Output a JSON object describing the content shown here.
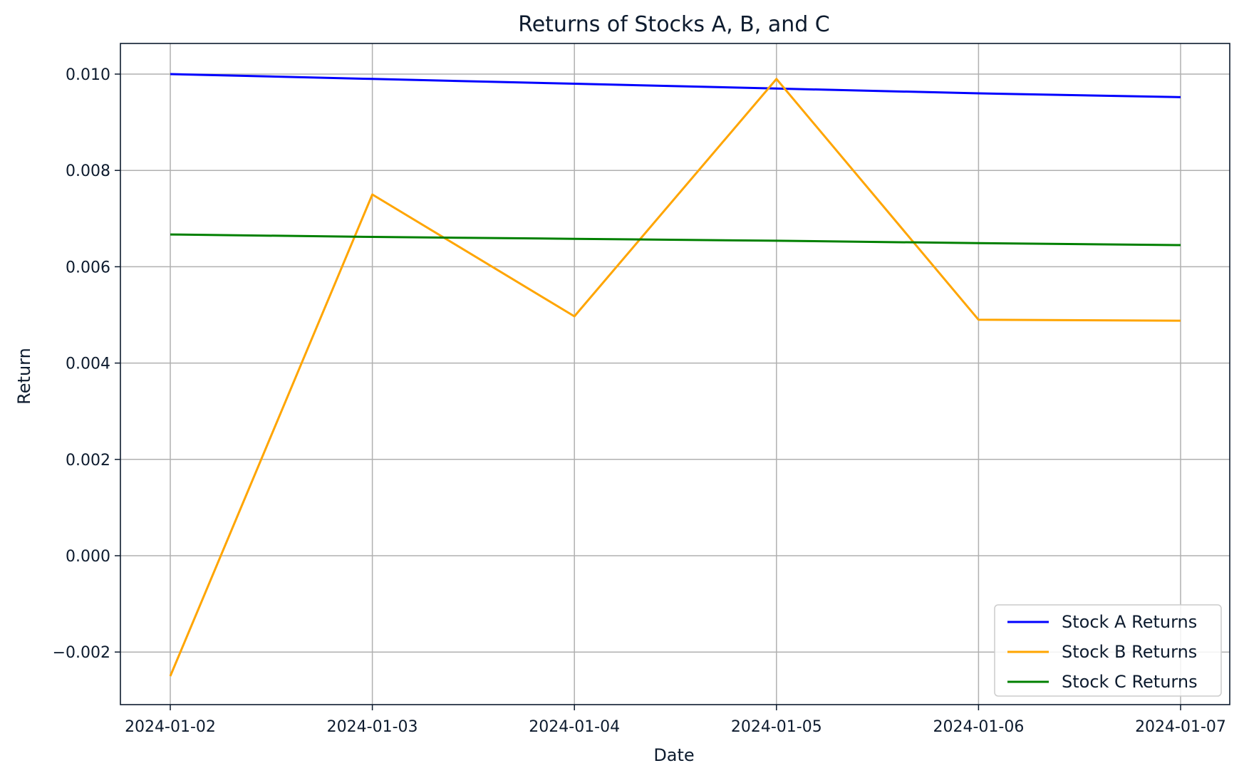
{
  "chart_data": {
    "type": "line",
    "title": "Returns of Stocks A, B, and C",
    "xlabel": "Date",
    "ylabel": "Return",
    "x": [
      "2024-01-02",
      "2024-01-03",
      "2024-01-04",
      "2024-01-05",
      "2024-01-06",
      "2024-01-07"
    ],
    "ylim": [
      -0.0031,
      0.0106
    ],
    "yticks": [
      -0.002,
      0.0,
      0.002,
      0.004,
      0.006,
      0.008,
      0.01
    ],
    "ytick_labels": [
      "−0.002",
      "0.000",
      "0.002",
      "0.004",
      "0.006",
      "0.008",
      "0.010"
    ],
    "grid": true,
    "legend_position": "lower-right",
    "series": [
      {
        "name": "Stock A Returns",
        "color": "#0000ff",
        "values": [
          0.01,
          0.0099,
          0.0098,
          0.0097,
          0.0096,
          0.00952
        ]
      },
      {
        "name": "Stock B Returns",
        "color": "#ffa500",
        "values": [
          -0.0025,
          0.0075,
          0.00497,
          0.0099,
          0.0049,
          0.00488
        ]
      },
      {
        "name": "Stock C Returns",
        "color": "#008000",
        "values": [
          0.00667,
          0.00662,
          0.00658,
          0.00654,
          0.00649,
          0.00645
        ]
      }
    ]
  }
}
